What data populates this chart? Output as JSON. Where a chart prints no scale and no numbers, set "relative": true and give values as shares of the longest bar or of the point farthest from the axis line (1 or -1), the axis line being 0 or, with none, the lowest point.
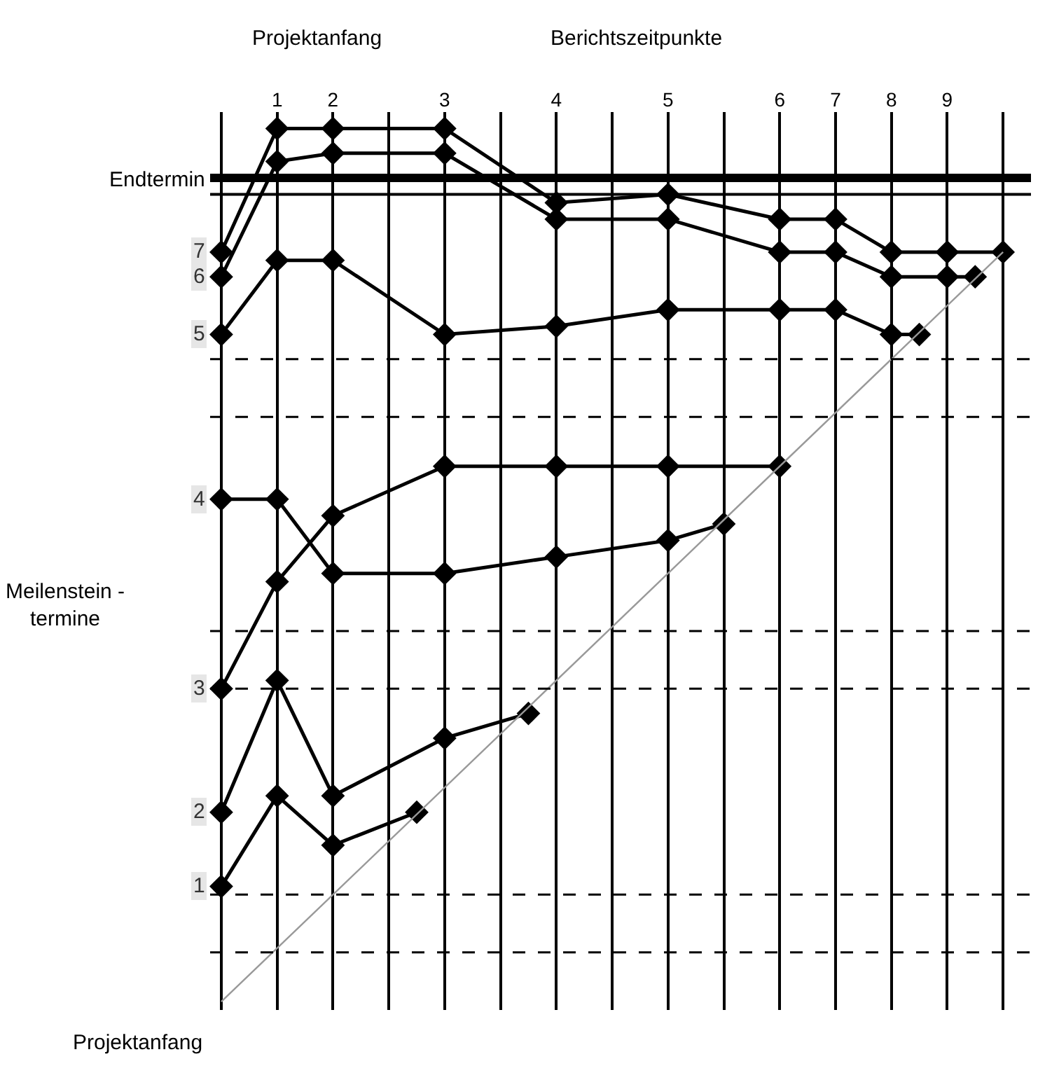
{
  "chart_data": {
    "type": "line",
    "relative": true,
    "marker": "diamond",
    "line_style": "solid",
    "legend": false,
    "grid": "x",
    "categories": [
      null,
      null,
      "1",
      null,
      "2",
      null,
      null,
      null,
      "3",
      null,
      null,
      null,
      "4",
      null,
      null,
      null,
      "5",
      null,
      null,
      null,
      "6",
      null,
      "7",
      null,
      "8",
      null,
      "9",
      null,
      null
    ],
    "series": [
      {
        "name": "1",
        "color": "#000000",
        "values": [
          -0.86,
          null,
          -0.75,
          null,
          -0.81,
          null,
          null,
          -0.77,
          null,
          null,
          null,
          null,
          null,
          null,
          null,
          null,
          null,
          null,
          null,
          null,
          null,
          null,
          null,
          null,
          null,
          null,
          null,
          null,
          null
        ]
      },
      {
        "name": "2",
        "color": "#000000",
        "values": [
          -0.77,
          null,
          -0.61,
          null,
          -0.75,
          null,
          null,
          null,
          -0.68,
          null,
          null,
          -0.65,
          null,
          null,
          null,
          null,
          null,
          null,
          null,
          null,
          null,
          null,
          null,
          null,
          null,
          null,
          null,
          null,
          null
        ]
      },
      {
        "name": "3",
        "color": "#000000",
        "values": [
          -0.62,
          null,
          -0.49,
          null,
          -0.41,
          null,
          null,
          null,
          -0.35,
          null,
          null,
          null,
          -0.35,
          null,
          null,
          null,
          -0.35,
          null,
          null,
          null,
          -0.35,
          null,
          null,
          null,
          null,
          null,
          null,
          null,
          null
        ]
      },
      {
        "name": "4",
        "color": "#000000",
        "values": [
          -0.39,
          null,
          -0.39,
          null,
          -0.48,
          null,
          null,
          null,
          -0.48,
          null,
          null,
          null,
          -0.46,
          null,
          null,
          null,
          -0.44,
          null,
          -0.42,
          null,
          null,
          null,
          null,
          null,
          null,
          null,
          null,
          null,
          null
        ]
      },
      {
        "name": "5",
        "color": "#000000",
        "values": [
          -0.19,
          null,
          -0.1,
          null,
          -0.1,
          null,
          null,
          null,
          -0.19,
          null,
          null,
          null,
          -0.18,
          null,
          null,
          null,
          -0.16,
          null,
          null,
          null,
          -0.16,
          null,
          -0.16,
          null,
          -0.19,
          -0.19,
          null,
          null,
          null
        ]
      },
      {
        "name": "6",
        "color": "#000000",
        "values": [
          -0.12,
          null,
          0.02,
          null,
          0.03,
          null,
          null,
          null,
          0.03,
          null,
          null,
          null,
          -0.05,
          null,
          null,
          null,
          -0.05,
          null,
          null,
          null,
          -0.09,
          null,
          -0.09,
          null,
          -0.12,
          null,
          -0.12,
          -0.12,
          null
        ]
      },
      {
        "name": "7",
        "color": "#000000",
        "values": [
          -0.09,
          null,
          0.06,
          null,
          0.06,
          null,
          null,
          null,
          0.06,
          null,
          null,
          null,
          -0.03,
          null,
          null,
          null,
          -0.02,
          null,
          null,
          null,
          -0.05,
          null,
          -0.05,
          null,
          -0.09,
          null,
          -0.09,
          null,
          -0.09
        ]
      },
      {
        "type": "line",
        "marker": "none",
        "color": "#999999",
        "values": [
          -1.0,
          null,
          null,
          null,
          null,
          null,
          null,
          null,
          null,
          null,
          null,
          null,
          null,
          null,
          null,
          null,
          null,
          null,
          null,
          null,
          null,
          null,
          null,
          null,
          null,
          null,
          null,
          null,
          -0.09
        ]
      }
    ],
    "ref_lines": [
      {
        "axis": "y",
        "value": -0.02,
        "label": "Endtermin",
        "line_style": "solid"
      },
      {
        "axis": "y",
        "value": -0.22,
        "line_style": "dashed"
      },
      {
        "axis": "y",
        "value": -0.29,
        "line_style": "dashed"
      },
      {
        "axis": "y",
        "value": -0.55,
        "line_style": "dashed"
      },
      {
        "axis": "y",
        "value": -0.62,
        "line_style": "dashed"
      },
      {
        "axis": "y",
        "value": -0.87,
        "line_style": "dashed"
      },
      {
        "axis": "y",
        "value": -0.94,
        "line_style": "dashed"
      }
    ],
    "annotations": [
      "Projektanfang",
      "Berichtszeitpunkte",
      "Meilenstein -\ntermine",
      "Projektanfang"
    ]
  }
}
